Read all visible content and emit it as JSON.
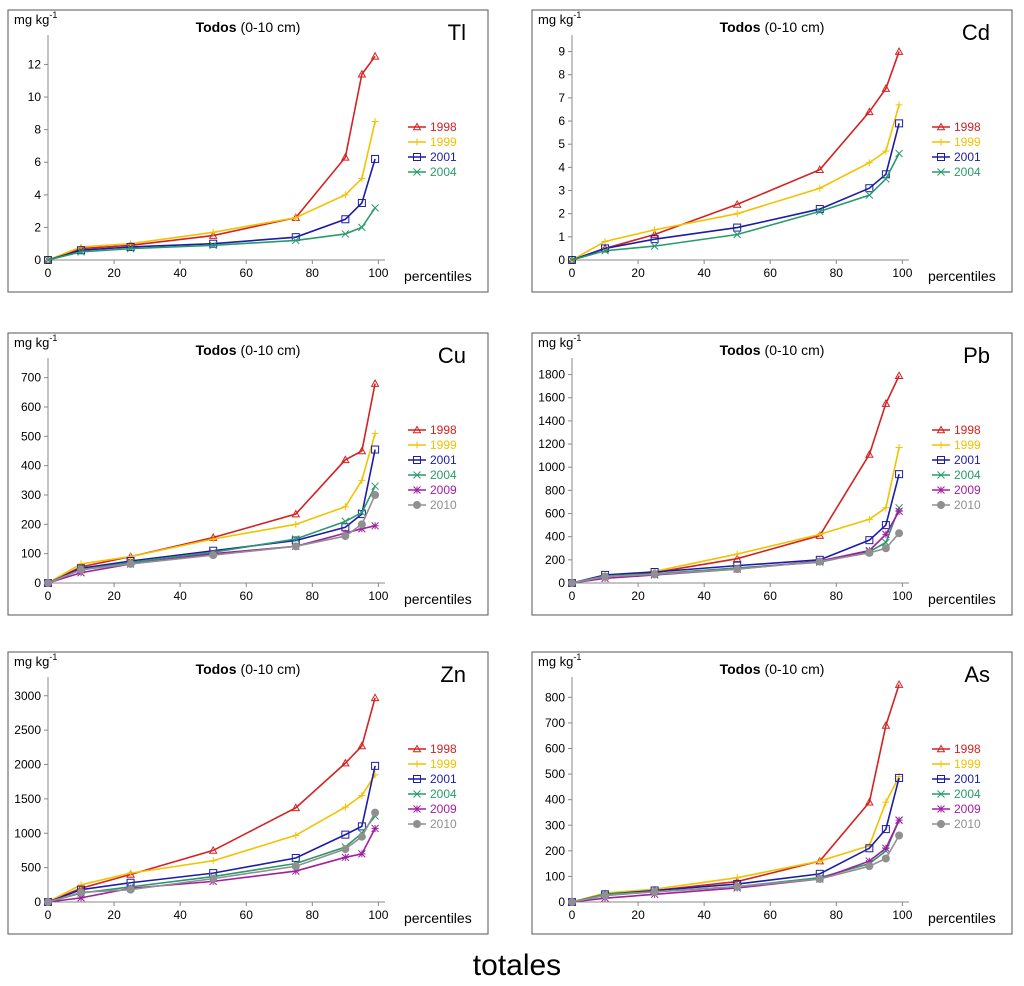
{
  "chart_data": [
    {
      "type": "line",
      "title": "Todos",
      "subtitle": "(0-10 cm)",
      "element": "Tl",
      "ylabel": "mg kg",
      "ylabel_exponent": "-1",
      "xlabel": "percentiles",
      "x": [
        0,
        10,
        25,
        50,
        75,
        90,
        95,
        99
      ],
      "xlim": [
        0,
        102
      ],
      "xticks": [
        0,
        20,
        40,
        60,
        80,
        100
      ],
      "ylim": [
        0,
        13.5
      ],
      "yticks": [
        0,
        2,
        4,
        6,
        8,
        10,
        12
      ],
      "series": [
        {
          "name": "1998",
          "color": "#d42121",
          "marker": "triangle",
          "values": [
            0,
            0.7,
            0.9,
            1.5,
            2.6,
            6.3,
            11.4,
            12.5
          ]
        },
        {
          "name": "1999",
          "color": "#f2c200",
          "marker": "plus",
          "values": [
            0,
            0.8,
            1.0,
            1.7,
            2.6,
            4.0,
            5.0,
            8.5
          ]
        },
        {
          "name": "2001",
          "color": "#1c1ca8",
          "marker": "square",
          "values": [
            0,
            0.6,
            0.8,
            1.0,
            1.4,
            2.5,
            3.5,
            6.2
          ]
        },
        {
          "name": "2004",
          "color": "#2a9a6a",
          "marker": "x",
          "values": [
            0,
            0.5,
            0.7,
            0.9,
            1.2,
            1.6,
            2.0,
            3.2
          ]
        }
      ]
    },
    {
      "type": "line",
      "title": "Todos",
      "subtitle": "(0-10 cm)",
      "element": "Cd",
      "ylabel": "mg kg",
      "ylabel_exponent": "-1",
      "xlabel": "percentiles",
      "x": [
        0,
        10,
        25,
        50,
        75,
        90,
        95,
        99
      ],
      "xlim": [
        0,
        102
      ],
      "xticks": [
        0,
        20,
        40,
        60,
        80,
        100
      ],
      "ylim": [
        0,
        9.5
      ],
      "yticks": [
        0,
        1,
        2,
        3,
        4,
        5,
        6,
        7,
        8,
        9
      ],
      "series": [
        {
          "name": "1998",
          "color": "#d42121",
          "marker": "triangle",
          "values": [
            0,
            0.5,
            1.1,
            2.4,
            3.9,
            6.4,
            7.4,
            9.0
          ]
        },
        {
          "name": "1999",
          "color": "#f2c200",
          "marker": "plus",
          "values": [
            0,
            0.8,
            1.3,
            2.0,
            3.1,
            4.2,
            4.7,
            6.7
          ]
        },
        {
          "name": "2001",
          "color": "#1c1ca8",
          "marker": "square",
          "values": [
            0,
            0.5,
            0.9,
            1.4,
            2.2,
            3.1,
            3.7,
            5.9
          ]
        },
        {
          "name": "2004",
          "color": "#2a9a6a",
          "marker": "x",
          "values": [
            0,
            0.4,
            0.6,
            1.1,
            2.1,
            2.8,
            3.5,
            4.6
          ]
        }
      ]
    },
    {
      "type": "line",
      "title": "Todos",
      "subtitle": "(0-10 cm)",
      "element": "Cu",
      "ylabel": "mg kg",
      "ylabel_exponent": "-1",
      "xlabel": "percentiles",
      "x": [
        0,
        10,
        25,
        50,
        75,
        90,
        95,
        99
      ],
      "xlim": [
        0,
        102
      ],
      "xticks": [
        0,
        20,
        40,
        60,
        80,
        100
      ],
      "ylim": [
        0,
        750
      ],
      "yticks": [
        0,
        100,
        200,
        300,
        400,
        500,
        600,
        700
      ],
      "series": [
        {
          "name": "1998",
          "color": "#d42121",
          "marker": "triangle",
          "values": [
            0,
            55,
            90,
            155,
            235,
            420,
            450,
            680
          ]
        },
        {
          "name": "1999",
          "color": "#f2c200",
          "marker": "plus",
          "values": [
            0,
            65,
            90,
            150,
            200,
            260,
            350,
            510
          ]
        },
        {
          "name": "2001",
          "color": "#1c1ca8",
          "marker": "square",
          "values": [
            0,
            50,
            75,
            110,
            145,
            190,
            235,
            455
          ]
        },
        {
          "name": "2004",
          "color": "#2a9a6a",
          "marker": "x",
          "values": [
            0,
            45,
            70,
            105,
            150,
            210,
            240,
            330
          ]
        },
        {
          "name": "2009",
          "color": "#a020a0",
          "marker": "asterisk",
          "values": [
            0,
            35,
            65,
            100,
            125,
            170,
            185,
            195
          ]
        },
        {
          "name": "2010",
          "color": "#909090",
          "marker": "circle",
          "values": [
            0,
            45,
            65,
            95,
            125,
            160,
            200,
            300
          ]
        }
      ]
    },
    {
      "type": "line",
      "title": "Todos",
      "subtitle": "(0-10 cm)",
      "element": "Pb",
      "ylabel": "mg kg",
      "ylabel_exponent": "-1",
      "xlabel": "percentiles",
      "x": [
        0,
        10,
        25,
        50,
        75,
        90,
        95,
        99
      ],
      "xlim": [
        0,
        102
      ],
      "xticks": [
        0,
        20,
        40,
        60,
        80,
        100
      ],
      "ylim": [
        0,
        1900
      ],
      "yticks": [
        0,
        200,
        400,
        600,
        800,
        1000,
        1200,
        1400,
        1600,
        1800
      ],
      "series": [
        {
          "name": "1998",
          "color": "#d42121",
          "marker": "triangle",
          "values": [
            0,
            60,
            90,
            210,
            410,
            1110,
            1550,
            1790
          ]
        },
        {
          "name": "1999",
          "color": "#f2c200",
          "marker": "plus",
          "values": [
            0,
            65,
            100,
            250,
            420,
            550,
            650,
            1170
          ]
        },
        {
          "name": "2001",
          "color": "#1c1ca8",
          "marker": "square",
          "values": [
            0,
            70,
            95,
            150,
            200,
            370,
            500,
            940
          ]
        },
        {
          "name": "2004",
          "color": "#2a9a6a",
          "marker": "x",
          "values": [
            0,
            60,
            80,
            130,
            180,
            270,
            350,
            650
          ]
        },
        {
          "name": "2009",
          "color": "#a020a0",
          "marker": "asterisk",
          "values": [
            0,
            40,
            70,
            120,
            190,
            280,
            420,
            620
          ]
        },
        {
          "name": "2010",
          "color": "#909090",
          "marker": "circle",
          "values": [
            0,
            55,
            75,
            120,
            185,
            260,
            300,
            430
          ]
        }
      ]
    },
    {
      "type": "line",
      "title": "Todos",
      "subtitle": "(0-10 cm)",
      "element": "Zn",
      "ylabel": "mg kg",
      "ylabel_exponent": "-1",
      "xlabel": "percentiles",
      "x": [
        0,
        10,
        25,
        50,
        75,
        90,
        95,
        99
      ],
      "xlim": [
        0,
        102
      ],
      "xticks": [
        0,
        20,
        40,
        60,
        80,
        100
      ],
      "ylim": [
        0,
        3200
      ],
      "yticks": [
        0,
        500,
        1000,
        1500,
        2000,
        2500,
        3000
      ],
      "series": [
        {
          "name": "1998",
          "color": "#d42121",
          "marker": "triangle",
          "values": [
            0,
            200,
            400,
            750,
            1370,
            2020,
            2270,
            2970
          ]
        },
        {
          "name": "1999",
          "color": "#f2c200",
          "marker": "plus",
          "values": [
            0,
            250,
            420,
            600,
            970,
            1380,
            1550,
            1850
          ]
        },
        {
          "name": "2001",
          "color": "#1c1ca8",
          "marker": "square",
          "values": [
            0,
            180,
            280,
            420,
            640,
            980,
            1100,
            1980
          ]
        },
        {
          "name": "2004",
          "color": "#2a9a6a",
          "marker": "x",
          "values": [
            0,
            130,
            220,
            370,
            560,
            800,
            1000,
            1250
          ]
        },
        {
          "name": "2009",
          "color": "#a020a0",
          "marker": "asterisk",
          "values": [
            0,
            60,
            200,
            300,
            450,
            650,
            700,
            1070
          ]
        },
        {
          "name": "2010",
          "color": "#909090",
          "marker": "circle",
          "values": [
            0,
            140,
            180,
            340,
            520,
            770,
            950,
            1300
          ]
        }
      ]
    },
    {
      "type": "line",
      "title": "Todos",
      "subtitle": "(0-10 cm)",
      "element": "As",
      "ylabel": "mg kg",
      "ylabel_exponent": "-1",
      "xlabel": "percentiles",
      "x": [
        0,
        10,
        25,
        50,
        75,
        90,
        95,
        99
      ],
      "xlim": [
        0,
        102
      ],
      "xticks": [
        0,
        20,
        40,
        60,
        80,
        100
      ],
      "ylim": [
        0,
        860
      ],
      "yticks": [
        0,
        100,
        200,
        300,
        400,
        500,
        600,
        700,
        800
      ],
      "series": [
        {
          "name": "1998",
          "color": "#d42121",
          "marker": "triangle",
          "values": [
            0,
            30,
            45,
            80,
            160,
            390,
            690,
            850
          ]
        },
        {
          "name": "1999",
          "color": "#f2c200",
          "marker": "plus",
          "values": [
            0,
            35,
            50,
            95,
            160,
            220,
            390,
            490
          ]
        },
        {
          "name": "2001",
          "color": "#1c1ca8",
          "marker": "square",
          "values": [
            0,
            30,
            45,
            70,
            110,
            210,
            285,
            485
          ]
        },
        {
          "name": "2004",
          "color": "#2a9a6a",
          "marker": "x",
          "values": [
            0,
            30,
            40,
            60,
            95,
            150,
            200,
            320
          ]
        },
        {
          "name": "2009",
          "color": "#a020a0",
          "marker": "asterisk",
          "values": [
            0,
            15,
            30,
            55,
            90,
            160,
            210,
            320
          ]
        },
        {
          "name": "2010",
          "color": "#909090",
          "marker": "circle",
          "values": [
            0,
            25,
            40,
            60,
            90,
            140,
            170,
            260
          ]
        }
      ]
    }
  ],
  "caption": "totales"
}
